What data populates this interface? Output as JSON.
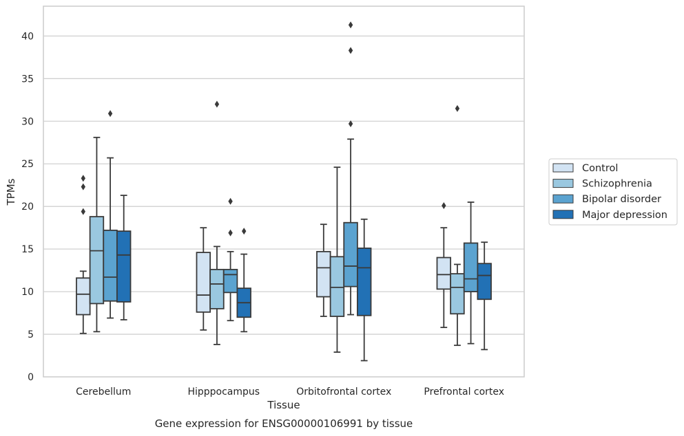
{
  "chart_data": {
    "type": "boxplot",
    "xlabel": "Tissue",
    "ylabel": "TPMs",
    "caption": "Gene expression for ENSG00000106991 by tissue",
    "ylim": [
      0,
      43.5
    ],
    "yticks": [
      0,
      5,
      10,
      15,
      20,
      25,
      30,
      35,
      40
    ],
    "grid": true,
    "legend_position": "right",
    "categories": [
      "Cerebellum",
      "Hipppocampus",
      "Orbitofrontal cortex",
      "Prefrontal cortex"
    ],
    "series": [
      {
        "name": "Control",
        "color": "#d2e3f3",
        "boxes": [
          {
            "whislo": 5.1,
            "q1": 7.3,
            "med": 9.7,
            "q3": 11.6,
            "whishi": 12.4,
            "fliers": [
              19.4,
              22.3,
              23.3
            ]
          },
          {
            "whislo": 5.5,
            "q1": 7.6,
            "med": 9.6,
            "q3": 14.6,
            "whishi": 17.5,
            "fliers": []
          },
          {
            "whislo": 7.1,
            "q1": 9.4,
            "med": 12.8,
            "q3": 14.7,
            "whishi": 17.9,
            "fliers": []
          },
          {
            "whislo": 5.8,
            "q1": 10.3,
            "med": 12.0,
            "q3": 14.0,
            "whishi": 17.5,
            "fliers": [
              20.1
            ]
          }
        ]
      },
      {
        "name": "Schizophrenia",
        "color": "#9ac8e0",
        "boxes": [
          {
            "whislo": 5.3,
            "q1": 8.6,
            "med": 14.8,
            "q3": 18.8,
            "whishi": 28.1,
            "fliers": []
          },
          {
            "whislo": 3.8,
            "q1": 8.0,
            "med": 10.9,
            "q3": 12.6,
            "whishi": 15.3,
            "fliers": [
              32.0
            ]
          },
          {
            "whislo": 2.9,
            "q1": 7.1,
            "med": 10.5,
            "q3": 14.1,
            "whishi": 24.6,
            "fliers": []
          },
          {
            "whislo": 3.7,
            "q1": 7.4,
            "med": 10.5,
            "q3": 12.1,
            "whishi": 13.2,
            "fliers": [
              31.5
            ]
          }
        ]
      },
      {
        "name": "Bipolar disorder",
        "color": "#5ba3d0",
        "boxes": [
          {
            "whislo": 6.9,
            "q1": 8.9,
            "med": 11.7,
            "q3": 17.2,
            "whishi": 25.7,
            "fliers": [
              30.9
            ]
          },
          {
            "whislo": 6.6,
            "q1": 9.9,
            "med": 12.0,
            "q3": 12.6,
            "whishi": 14.7,
            "fliers": [
              16.9,
              20.6
            ]
          },
          {
            "whislo": 7.3,
            "q1": 10.6,
            "med": 13.0,
            "q3": 18.1,
            "whishi": 27.9,
            "fliers": [
              29.7,
              38.3,
              41.3
            ]
          },
          {
            "whislo": 3.9,
            "q1": 10.0,
            "med": 11.5,
            "q3": 15.7,
            "whishi": 20.5,
            "fliers": []
          }
        ]
      },
      {
        "name": "Major depression",
        "color": "#2271b5",
        "boxes": [
          {
            "whislo": 6.7,
            "q1": 8.8,
            "med": 14.3,
            "q3": 17.1,
            "whishi": 21.3,
            "fliers": []
          },
          {
            "whislo": 5.3,
            "q1": 7.0,
            "med": 8.7,
            "q3": 10.4,
            "whishi": 14.4,
            "fliers": [
              17.1
            ]
          },
          {
            "whislo": 1.9,
            "q1": 7.2,
            "med": 12.8,
            "q3": 15.1,
            "whishi": 18.5,
            "fliers": []
          },
          {
            "whislo": 3.2,
            "q1": 9.1,
            "med": 11.9,
            "q3": 13.3,
            "whishi": 15.8,
            "fliers": []
          }
        ]
      }
    ]
  }
}
